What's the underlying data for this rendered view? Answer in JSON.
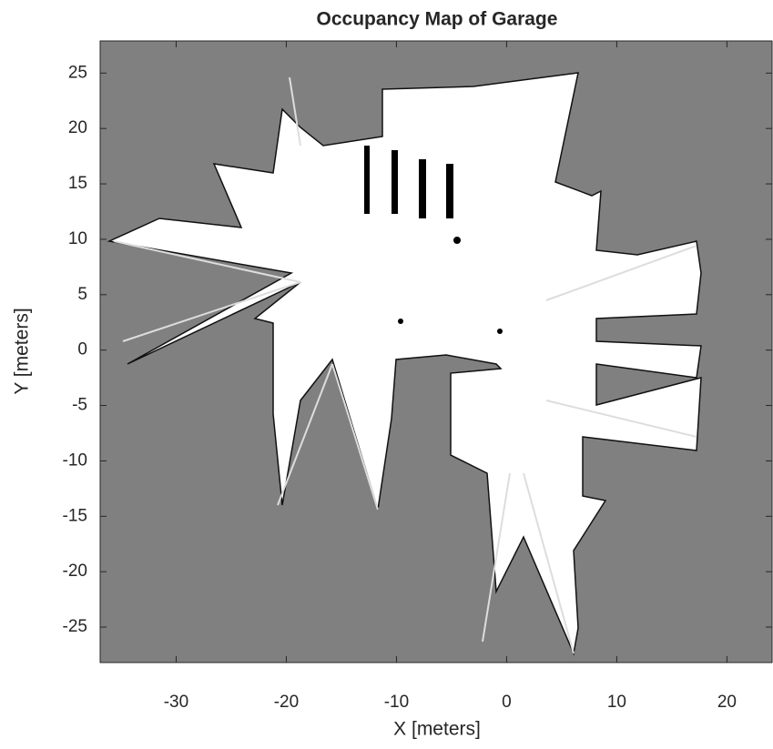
{
  "chart_data": {
    "type": "image",
    "title": "Occupancy Map of Garage",
    "xlabel": "X [meters]",
    "ylabel": "Y [meters]",
    "xlim": [
      -36.9,
      24.1
    ],
    "ylim": [
      -28.2,
      27.9
    ],
    "xticks": [
      -30,
      -20,
      -10,
      0,
      10,
      20
    ],
    "yticks": [
      -25,
      -20,
      -15,
      -10,
      -5,
      0,
      5,
      10,
      15,
      20,
      25
    ]
  }
}
